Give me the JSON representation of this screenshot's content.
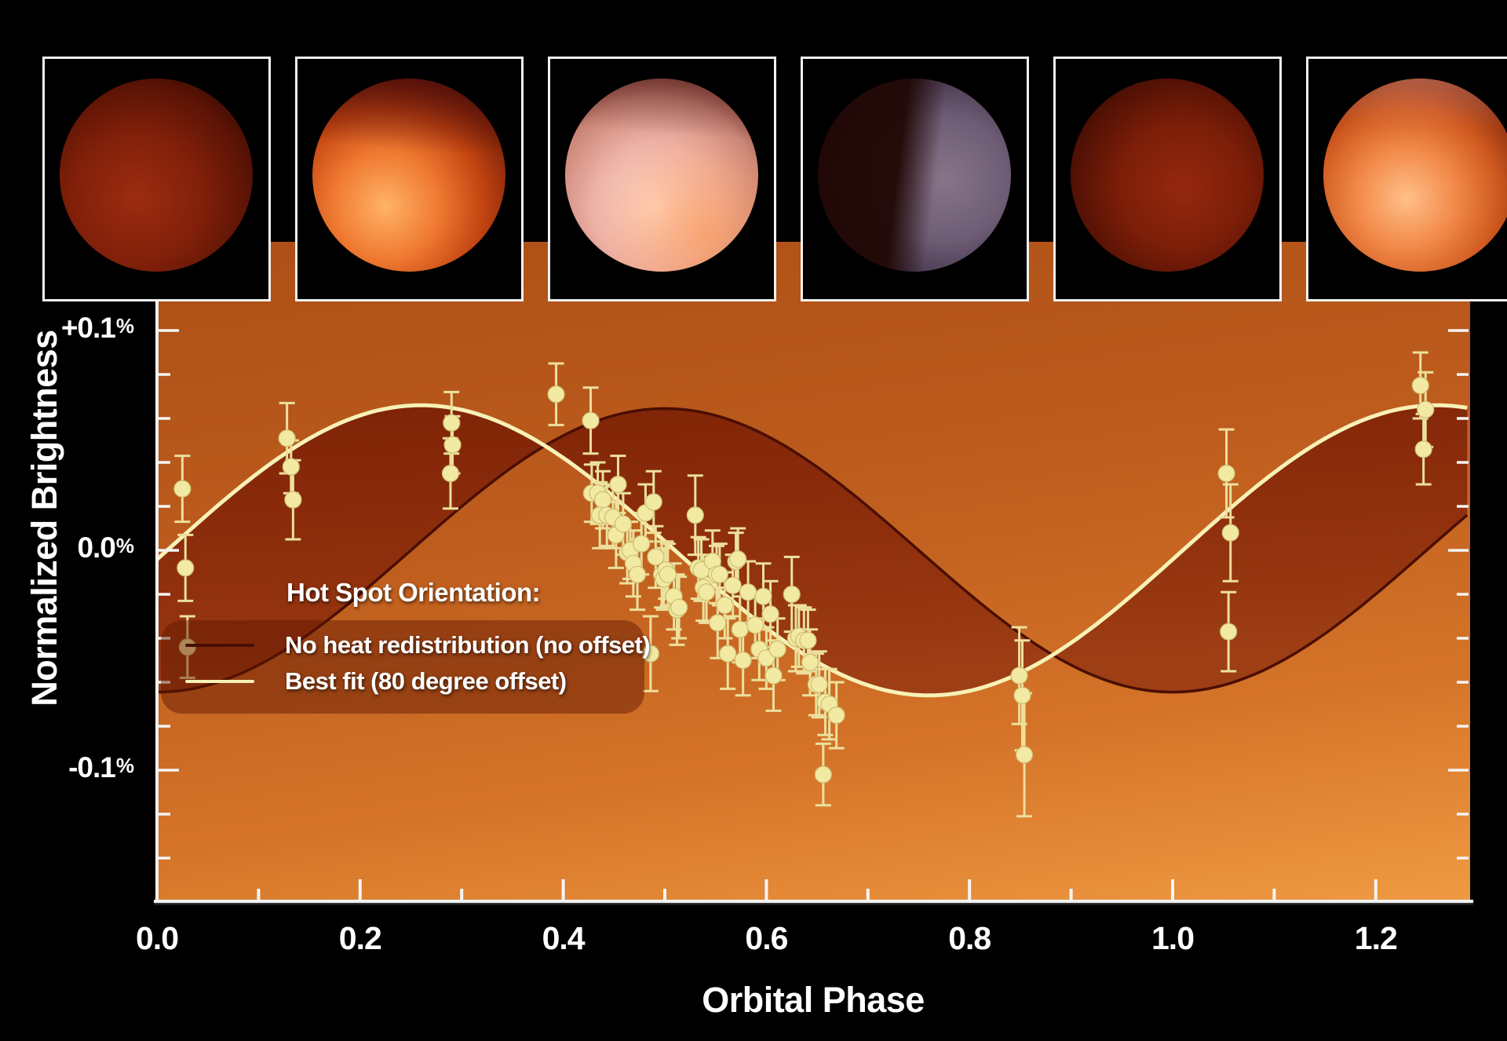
{
  "page": {
    "background": "#000000"
  },
  "axes": {
    "y_title": "Normalized Brightness",
    "x_title": "Orbital Phase",
    "y_ticks": [
      {
        "label": "+0.1%",
        "value": 0.1
      },
      {
        "label": "0.0%",
        "value": 0.0
      },
      {
        "label": "-0.1%",
        "value": -0.1
      }
    ],
    "x_ticks": [
      {
        "label": "0.0",
        "value": 0.0
      },
      {
        "label": "0.2",
        "value": 0.2
      },
      {
        "label": "0.4",
        "value": 0.4
      },
      {
        "label": "0.6",
        "value": 0.6
      },
      {
        "label": "0.8",
        "value": 0.8
      },
      {
        "label": "1.0",
        "value": 1.0
      },
      {
        "label": "1.2",
        "value": 1.2
      }
    ]
  },
  "legend": {
    "title": "Hot Spot Orientation:",
    "items": [
      {
        "label": "No heat redistribution (no offset)",
        "color": "#4a0e03"
      },
      {
        "label": "Best fit (80 degree offset)",
        "color": "#f7f1b6"
      }
    ]
  },
  "planets": {
    "items": [
      {
        "name": "planet-render-phase-0.00",
        "appearance": "dim red night side"
      },
      {
        "name": "planet-render-phase-0.25",
        "appearance": "bright orange glow lower left"
      },
      {
        "name": "planet-render-phase-0.50",
        "appearance": "pale pink-white fully lit"
      },
      {
        "name": "planet-render-phase-0.75",
        "appearance": "dark left, dusky violet right"
      },
      {
        "name": "planet-render-phase-1.00",
        "appearance": "dim red night side"
      },
      {
        "name": "planet-render-phase-1.25",
        "appearance": "bright peach glow lower left"
      }
    ]
  },
  "chart_data": {
    "type": "scatter",
    "title": "",
    "xlabel": "Orbital Phase",
    "ylabel": "Normalized Brightness",
    "xlim": [
      0.0,
      1.293
    ],
    "ylim_percent": [
      -0.16,
      0.14
    ],
    "x_major_tick_step": 0.2,
    "x_minor_tick_step": 0.1,
    "y_minor_tick_step_percent": 0.02,
    "grid": false,
    "legend_position": "lower-left",
    "colors": {
      "background_top": "#ad4f17",
      "background_bottom": "#ef9a42",
      "band_fill": "#8b2b0b",
      "no_offset_curve": "#4a0e03",
      "best_fit_curve": "#f7f1b6",
      "data_points": "#f2e9a2",
      "axis": "#f2f2f2"
    },
    "series": [
      {
        "name": "No heat redistribution (no offset)",
        "type": "model-sinusoid",
        "amplitude_percent": 0.0645,
        "peak_phase": 0.5
      },
      {
        "name": "Best fit (80 degree offset)",
        "type": "model-sinusoid",
        "amplitude_percent": 0.066,
        "peak_phase": 0.26
      },
      {
        "name": "Observed brightness",
        "type": "scatter-with-errorbars",
        "point_format": [
          "phase",
          "brightness_percent",
          "error_percent"
        ],
        "points": [
          [
            0.025,
            0.028,
            0.015
          ],
          [
            0.028,
            -0.008,
            0.015
          ],
          [
            0.03,
            -0.044,
            0.014
          ],
          [
            0.128,
            0.051,
            0.016
          ],
          [
            0.132,
            0.038,
            0.012
          ],
          [
            0.134,
            0.023,
            0.018
          ],
          [
            0.29,
            0.058,
            0.014
          ],
          [
            0.291,
            0.048,
            0.013
          ],
          [
            0.289,
            0.035,
            0.016
          ],
          [
            0.393,
            0.071,
            0.014
          ],
          [
            0.427,
            0.059,
            0.015
          ],
          [
            0.428,
            0.026,
            0.013
          ],
          [
            0.434,
            0.026,
            0.014
          ],
          [
            0.439,
            0.023,
            0.013
          ],
          [
            0.436,
            0.016,
            0.015
          ],
          [
            0.443,
            0.016,
            0.014
          ],
          [
            0.449,
            0.015,
            0.014
          ],
          [
            0.454,
            0.03,
            0.013
          ],
          [
            0.452,
            0.007,
            0.015
          ],
          [
            0.459,
            0.012,
            0.014
          ],
          [
            0.463,
            -0.001,
            0.014
          ],
          [
            0.466,
            0.0,
            0.013
          ],
          [
            0.469,
            -0.006,
            0.015
          ],
          [
            0.473,
            -0.011,
            0.016
          ],
          [
            0.477,
            0.003,
            0.014
          ],
          [
            0.481,
            0.017,
            0.013
          ],
          [
            0.486,
            -0.047,
            0.017
          ],
          [
            0.489,
            0.022,
            0.014
          ],
          [
            0.491,
            -0.003,
            0.014
          ],
          [
            0.497,
            -0.011,
            0.015
          ],
          [
            0.499,
            -0.013,
            0.014
          ],
          [
            0.501,
            -0.009,
            0.013
          ],
          [
            0.503,
            -0.011,
            0.014
          ],
          [
            0.509,
            -0.021,
            0.015
          ],
          [
            0.512,
            -0.027,
            0.016
          ],
          [
            0.514,
            -0.026,
            0.014
          ],
          [
            0.53,
            0.016,
            0.018
          ],
          [
            0.533,
            -0.008,
            0.014
          ],
          [
            0.536,
            -0.009,
            0.014
          ],
          [
            0.538,
            -0.017,
            0.015
          ],
          [
            0.541,
            -0.019,
            0.014
          ],
          [
            0.547,
            -0.005,
            0.014
          ],
          [
            0.551,
            -0.011,
            0.013
          ],
          [
            0.552,
            -0.033,
            0.016
          ],
          [
            0.554,
            -0.011,
            0.014
          ],
          [
            0.559,
            -0.025,
            0.015
          ],
          [
            0.562,
            -0.047,
            0.016
          ],
          [
            0.567,
            -0.016,
            0.014
          ],
          [
            0.57,
            -0.005,
            0.013
          ],
          [
            0.572,
            -0.004,
            0.014
          ],
          [
            0.574,
            -0.036,
            0.015
          ],
          [
            0.577,
            -0.05,
            0.016
          ],
          [
            0.582,
            -0.019,
            0.014
          ],
          [
            0.589,
            -0.034,
            0.015
          ],
          [
            0.593,
            -0.045,
            0.014
          ],
          [
            0.597,
            -0.021,
            0.015
          ],
          [
            0.6,
            -0.049,
            0.014
          ],
          [
            0.604,
            -0.029,
            0.015
          ],
          [
            0.607,
            -0.057,
            0.016
          ],
          [
            0.611,
            -0.045,
            0.014
          ],
          [
            0.625,
            -0.02,
            0.017
          ],
          [
            0.629,
            -0.04,
            0.015
          ],
          [
            0.632,
            -0.039,
            0.014
          ],
          [
            0.637,
            -0.041,
            0.015
          ],
          [
            0.641,
            -0.041,
            0.014
          ],
          [
            0.643,
            -0.051,
            0.015
          ],
          [
            0.649,
            -0.061,
            0.014
          ],
          [
            0.652,
            -0.061,
            0.015
          ],
          [
            0.656,
            -0.102,
            0.014
          ],
          [
            0.658,
            -0.069,
            0.015
          ],
          [
            0.662,
            -0.07,
            0.016
          ],
          [
            0.669,
            -0.075,
            0.015
          ],
          [
            0.849,
            -0.057,
            0.022
          ],
          [
            0.852,
            -0.066,
            0.025
          ],
          [
            0.854,
            -0.093,
            0.028
          ],
          [
            1.053,
            0.035,
            0.02
          ],
          [
            1.057,
            0.008,
            0.022
          ],
          [
            1.055,
            -0.037,
            0.018
          ],
          [
            1.244,
            0.075,
            0.015
          ],
          [
            1.249,
            0.064,
            0.017
          ],
          [
            1.247,
            0.046,
            0.016
          ]
        ]
      }
    ]
  }
}
